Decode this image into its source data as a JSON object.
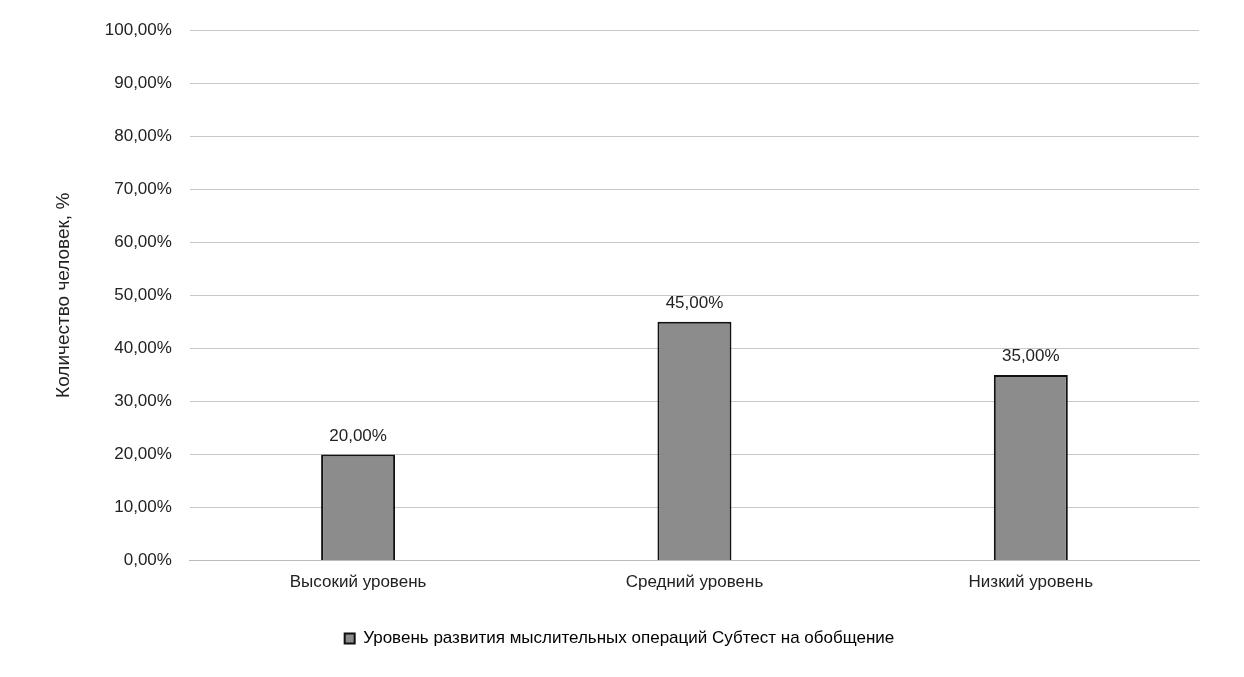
{
  "chart_data": {
    "type": "bar",
    "ylabel": "Количество человек, %",
    "categories": [
      "Высокий уровень",
      "Средний уровень",
      "Низкий уровень"
    ],
    "series": [
      {
        "name": "Уровень развития мыслительных операций Субтест на обобщение",
        "color": "#8c8c8c",
        "values": [
          20,
          45,
          35
        ],
        "value_labels": [
          "20,00%",
          "45,00%",
          "35,00%"
        ]
      }
    ],
    "ylim": [
      0,
      100
    ],
    "yticks": [
      {
        "value": 0,
        "label": "0,00%"
      },
      {
        "value": 10,
        "label": "10,00%"
      },
      {
        "value": 20,
        "label": "20,00%"
      },
      {
        "value": 30,
        "label": "30,00%"
      },
      {
        "value": 40,
        "label": "40,00%"
      },
      {
        "value": 50,
        "label": "50,00%"
      },
      {
        "value": 60,
        "label": "60,00%"
      },
      {
        "value": 70,
        "label": "70,00%"
      },
      {
        "value": 80,
        "label": "80,00%"
      },
      {
        "value": 90,
        "label": "90,00%"
      },
      {
        "value": 100,
        "label": "100,00%"
      }
    ],
    "grid": "y",
    "legend": "bottom"
  }
}
